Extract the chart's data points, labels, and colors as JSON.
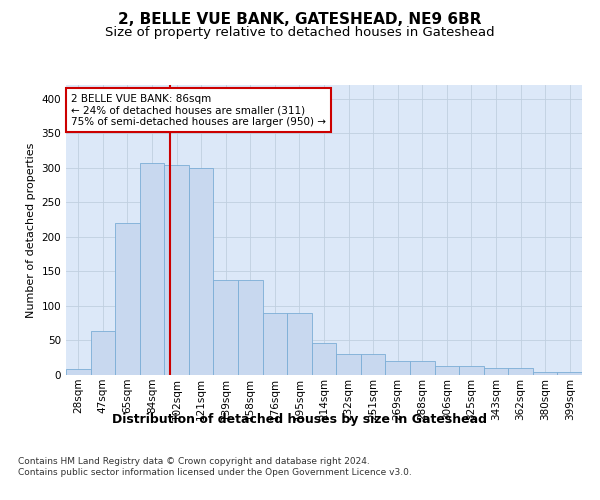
{
  "title": "2, BELLE VUE BANK, GATESHEAD, NE9 6BR",
  "subtitle": "Size of property relative to detached houses in Gateshead",
  "xlabel": "Distribution of detached houses by size in Gateshead",
  "ylabel": "Number of detached properties",
  "categories": [
    "28sqm",
    "47sqm",
    "65sqm",
    "84sqm",
    "102sqm",
    "121sqm",
    "139sqm",
    "158sqm",
    "176sqm",
    "195sqm",
    "214sqm",
    "232sqm",
    "251sqm",
    "269sqm",
    "288sqm",
    "306sqm",
    "325sqm",
    "343sqm",
    "362sqm",
    "380sqm",
    "399sqm"
  ],
  "bar_values": [
    8,
    64,
    220,
    307,
    304,
    300,
    138,
    138,
    90,
    90,
    46,
    30,
    30,
    20,
    20,
    13,
    13,
    10,
    10,
    4,
    4
  ],
  "bar_color": "#c8d8ef",
  "bar_edge_color": "#7badd6",
  "grid_color": "#c0cfe0",
  "background_color": "#dce8f8",
  "annotation_text": "2 BELLE VUE BANK: 86sqm\n← 24% of detached houses are smaller (311)\n75% of semi-detached houses are larger (950) →",
  "annotation_box_color": "#ffffff",
  "annotation_border_color": "#cc0000",
  "vline_color": "#cc0000",
  "vline_x_index": 3.75,
  "ylim": [
    0,
    420
  ],
  "yticks": [
    0,
    50,
    100,
    150,
    200,
    250,
    300,
    350,
    400
  ],
  "footer": "Contains HM Land Registry data © Crown copyright and database right 2024.\nContains public sector information licensed under the Open Government Licence v3.0.",
  "title_fontsize": 11,
  "subtitle_fontsize": 9.5,
  "xlabel_fontsize": 9,
  "ylabel_fontsize": 8,
  "tick_fontsize": 7.5,
  "footer_fontsize": 6.5,
  "ann_fontsize": 7.5
}
